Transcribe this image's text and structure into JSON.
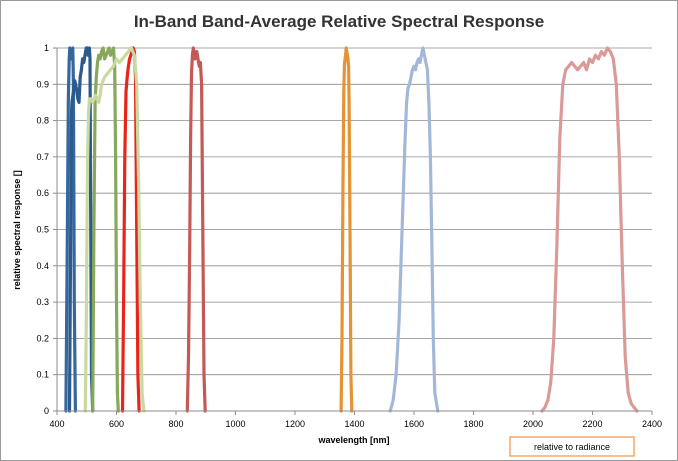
{
  "chart_data": {
    "type": "line",
    "title": "In-Band Band-Average Relative Spectral Response",
    "xlabel": "wavelength [nm]",
    "ylabel": "relative spectral response []",
    "xlim": [
      400,
      2400
    ],
    "ylim": [
      0,
      1
    ],
    "xticks": [
      "400",
      "600",
      "800",
      "1000",
      "1200",
      "1400",
      "1600",
      "1800",
      "2000",
      "2200",
      "2400"
    ],
    "yticks": [
      "0",
      "0.1",
      "0.2",
      "0.3",
      "0.4",
      "0.5",
      "0.6",
      "0.7",
      "0.8",
      "0.9",
      "1"
    ],
    "grid": true,
    "legend": {
      "position": "bottom-right",
      "entries": [
        "relative to radiance"
      ]
    },
    "series": [
      {
        "color": "#35679e",
        "x": [
          430,
          434,
          438,
          441,
          443,
          445,
          447,
          449,
          451,
          453,
          455,
          458,
          462
        ],
        "y": [
          0,
          0.4,
          0.85,
          0.97,
          1,
          0.99,
          0.97,
          0.98,
          0.99,
          1,
          0.9,
          0.3,
          0
        ]
      },
      {
        "color": "#2b5a8c",
        "x": [
          442,
          446,
          448,
          450,
          455,
          460,
          465,
          470,
          474,
          478,
          482,
          486,
          490,
          494,
          498,
          501,
          503,
          505,
          507,
          509,
          511,
          513,
          516,
          520
        ],
        "y": [
          0,
          0.5,
          0.8,
          0.85,
          0.88,
          0.91,
          0.89,
          0.86,
          0.85,
          0.92,
          0.94,
          0.97,
          0.96,
          0.98,
          1,
          0.99,
          1,
          0.98,
          0.99,
          1,
          0.97,
          0.6,
          0.1,
          0
        ]
      },
      {
        "color": "#86a85a",
        "x": [
          520,
          524,
          528,
          532,
          536,
          540,
          545,
          550,
          555,
          560,
          565,
          570,
          575,
          580,
          585,
          590,
          594,
          597,
          600,
          603,
          606
        ],
        "y": [
          0,
          0.5,
          0.85,
          0.92,
          0.96,
          0.98,
          0.97,
          0.99,
          1,
          0.97,
          0.98,
          0.99,
          1,
          0.98,
          0.99,
          1,
          0.95,
          0.7,
          0.3,
          0.05,
          0
        ]
      },
      {
        "color": "#e8241b",
        "x": [
          620,
          624,
          628,
          632,
          636,
          640,
          644,
          648,
          652,
          656,
          660,
          664,
          668,
          672,
          676
        ],
        "y": [
          0,
          0.3,
          0.7,
          0.88,
          0.92,
          0.95,
          0.97,
          0.98,
          0.99,
          1,
          0.99,
          0.92,
          0.5,
          0.1,
          0
        ]
      },
      {
        "color": "#c9d9a2",
        "x": [
          495,
          499,
          503,
          506,
          509,
          512,
          516,
          520,
          525,
          530,
          535,
          540,
          545,
          550,
          560,
          570,
          580,
          590,
          600,
          610,
          620,
          630,
          640,
          650,
          660,
          668,
          675,
          680,
          686,
          692
        ],
        "y": [
          0,
          0.3,
          0.7,
          0.82,
          0.86,
          0.86,
          0.86,
          0.85,
          0.86,
          0.87,
          0.86,
          0.85,
          0.87,
          0.9,
          0.92,
          0.93,
          0.94,
          0.95,
          0.97,
          0.96,
          0.97,
          0.98,
          0.99,
          1,
          0.98,
          0.9,
          0.6,
          0.3,
          0.05,
          0
        ]
      },
      {
        "color": "#c45a55",
        "x": [
          838,
          842,
          846,
          849,
          852,
          855,
          858,
          861,
          864,
          867,
          870,
          874,
          878,
          882,
          886,
          890,
          894,
          898
        ],
        "y": [
          0,
          0.15,
          0.45,
          0.75,
          0.93,
          0.98,
          1,
          0.99,
          0.97,
          0.98,
          0.99,
          0.97,
          0.95,
          0.96,
          0.9,
          0.5,
          0.1,
          0
        ]
      },
      {
        "color": "#e59435",
        "x": [
          1355,
          1358,
          1361,
          1364,
          1366,
          1368,
          1370,
          1372,
          1374,
          1376,
          1378,
          1380,
          1382,
          1385,
          1388,
          1391
        ],
        "y": [
          0,
          0.2,
          0.6,
          0.88,
          0.95,
          0.97,
          0.98,
          1,
          0.99,
          0.98,
          0.97,
          0.95,
          0.85,
          0.5,
          0.1,
          0
        ]
      },
      {
        "color": "#a3b8d9",
        "x": [
          1520,
          1530,
          1540,
          1550,
          1560,
          1570,
          1575,
          1580,
          1585,
          1590,
          1595,
          1600,
          1605,
          1610,
          1615,
          1620,
          1625,
          1630,
          1635,
          1640,
          1645,
          1650,
          1655,
          1660,
          1665,
          1670,
          1680
        ],
        "y": [
          0,
          0.03,
          0.1,
          0.25,
          0.5,
          0.75,
          0.85,
          0.89,
          0.9,
          0.92,
          0.94,
          0.95,
          0.94,
          0.96,
          0.97,
          0.96,
          0.98,
          1,
          0.98,
          0.96,
          0.94,
          0.85,
          0.7,
          0.45,
          0.2,
          0.05,
          0
        ]
      },
      {
        "color": "#d99a98",
        "x": [
          2030,
          2040,
          2050,
          2060,
          2070,
          2080,
          2090,
          2100,
          2110,
          2120,
          2130,
          2140,
          2150,
          2160,
          2170,
          2180,
          2190,
          2200,
          2210,
          2220,
          2230,
          2240,
          2250,
          2260,
          2270,
          2280,
          2290,
          2300,
          2310,
          2320,
          2330,
          2340,
          2350
        ],
        "y": [
          0,
          0.01,
          0.03,
          0.08,
          0.2,
          0.45,
          0.75,
          0.9,
          0.94,
          0.95,
          0.96,
          0.95,
          0.94,
          0.95,
          0.96,
          0.94,
          0.97,
          0.96,
          0.98,
          0.97,
          0.99,
          0.98,
          1,
          0.99,
          0.97,
          0.9,
          0.7,
          0.4,
          0.15,
          0.05,
          0.02,
          0.01,
          0
        ]
      }
    ]
  }
}
